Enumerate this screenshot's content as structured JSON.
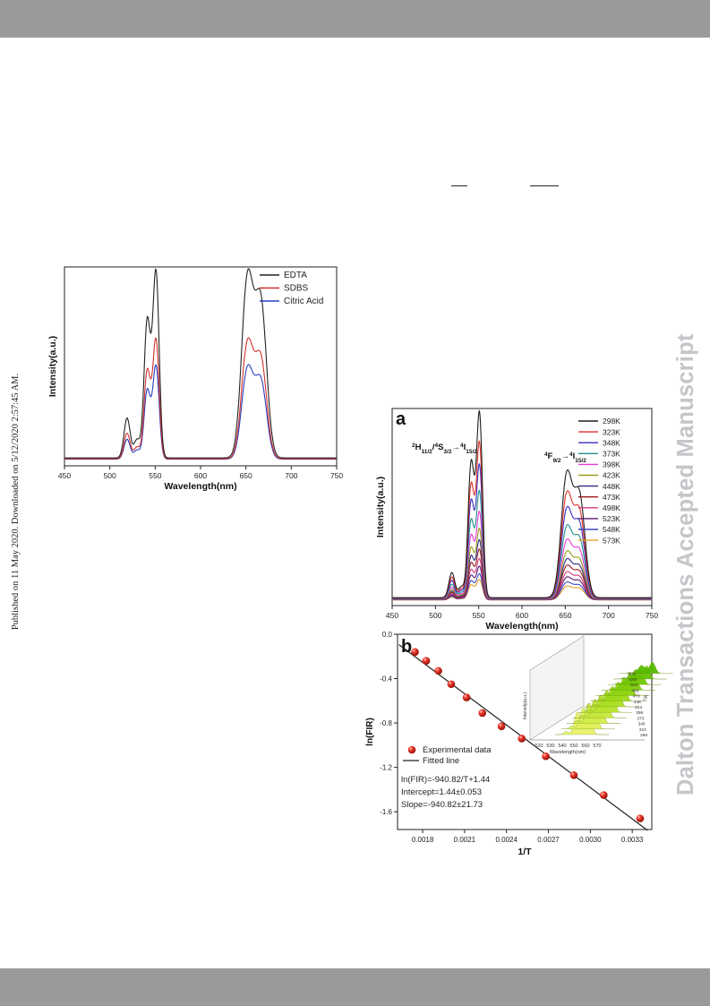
{
  "page": {
    "side_note": "Published on 11 May 2020. Downloaded on 5/12/2020 2:57:45 AM.",
    "watermark": "Dalton Transactions Accepted Manuscript"
  },
  "chart_data": [
    {
      "id": "surfactant",
      "type": "line",
      "xlabel": "Wavelength(nm)",
      "ylabel": "Intensity(a.u.)",
      "xlim": [
        450,
        750
      ],
      "xticks": [
        "450",
        "500",
        "550",
        "600",
        "650",
        "700",
        "750"
      ],
      "legend": "top-right",
      "series": [
        {
          "name": "EDTA",
          "color": "#222222",
          "scale": 1.0
        },
        {
          "name": "SDBS",
          "color": "#d2312c",
          "scale": 0.64
        },
        {
          "name": "Citric Acid",
          "color": "#2b3fbf",
          "scale": 0.5
        }
      ],
      "peaks": [
        [
          519,
          0.22
        ],
        [
          530,
          0.1
        ],
        [
          541,
          0.73
        ],
        [
          551,
          1.0
        ],
        [
          651,
          0.84
        ],
        [
          667,
          0.76
        ]
      ]
    },
    {
      "id": "a",
      "type": "line",
      "panel_label": "a",
      "xlabel": "Wavelength(nm)",
      "ylabel": "Intensity(a.u.)",
      "xlim": [
        450,
        750
      ],
      "xticks": [
        "450",
        "500",
        "550",
        "600",
        "650",
        "700",
        "750"
      ],
      "legend": "top-right",
      "annotations": {
        "green": [
          "2",
          "H",
          "11/2",
          "/",
          "4",
          "S",
          "3/2",
          "→",
          "4",
          "I",
          "15/2"
        ],
        "red": [
          "4",
          "F",
          "9/2",
          "→",
          "4",
          "I",
          "15/2"
        ]
      },
      "series": [
        {
          "name": "298K",
          "color": "#1f1f1f",
          "scale": 1.0
        },
        {
          "name": "323K",
          "color": "#e0302a",
          "scale": 0.84
        },
        {
          "name": "348K",
          "color": "#3a2fc0",
          "scale": 0.72
        },
        {
          "name": "373K",
          "color": "#1f8f8f",
          "scale": 0.58
        },
        {
          "name": "398K",
          "color": "#e83ad8",
          "scale": 0.47
        },
        {
          "name": "423K",
          "color": "#9a9a1a",
          "scale": 0.38
        },
        {
          "name": "448K",
          "color": "#2a2a80",
          "scale": 0.32
        },
        {
          "name": "473K",
          "color": "#9a1a1a",
          "scale": 0.27
        },
        {
          "name": "498K",
          "color": "#d43a7e",
          "scale": 0.22
        },
        {
          "name": "523K",
          "color": "#5a1a70",
          "scale": 0.18
        },
        {
          "name": "548K",
          "color": "#3a4abf",
          "scale": 0.14
        },
        {
          "name": "573K",
          "color": "#e8a02a",
          "scale": 0.11
        }
      ],
      "peaks": [
        [
          519,
          0.14
        ],
        [
          530,
          0.06
        ],
        [
          541,
          0.72
        ],
        [
          551,
          1.0
        ],
        [
          651,
          0.58
        ],
        [
          667,
          0.5
        ]
      ]
    },
    {
      "id": "b",
      "type": "scatter",
      "panel_label": "b",
      "xlabel": "1/T",
      "ylabel": "ln(FIR)",
      "xlim": [
        0.00162,
        0.00344
      ],
      "ylim": [
        -1.76,
        0.0
      ],
      "xticks": [
        0.0018,
        0.0021,
        0.0024,
        0.0027,
        0.003,
        0.0033
      ],
      "xtick_labels": [
        "0.0018",
        "0.0021",
        "0.0024",
        "0.0027",
        "0.0030",
        "0.0033"
      ],
      "yticks": [
        0.0,
        -0.4,
        -0.8,
        -1.2,
        -1.6
      ],
      "ytick_labels": [
        "0.0",
        "-0.4",
        "-0.8",
        "-1.2",
        "-1.6"
      ],
      "series": [
        {
          "name": "Experimental data",
          "x": [
            0.001745,
            0.001825,
            0.001912,
            0.002004,
            0.002114,
            0.002227,
            0.002364,
            0.002509,
            0.002681,
            0.002882,
            0.003096,
            0.003356
          ],
          "y": [
            -0.16,
            -0.24,
            -0.33,
            -0.45,
            -0.57,
            -0.71,
            -0.83,
            -0.94,
            -1.1,
            -1.27,
            -1.45,
            -1.66
          ],
          "color": "#e02a20"
        },
        {
          "name": "Fitted line",
          "type": "line",
          "x": [
            0.00163,
            0.00341
          ],
          "y": [
            -0.094,
            -1.768
          ],
          "color": "#222222"
        }
      ],
      "legend": "lower-left",
      "fit_text": [
        "ln(FIR)=-940.82/T+1.44",
        "Intercept=1.44±0.053",
        "Slope=-940.82±21.73"
      ],
      "inset": {
        "xlabel": "Wavelength(nm)",
        "ylabel": "Intensity(a.u.)",
        "xticks": [
          "520",
          "530",
          "540",
          "550",
          "560",
          "570"
        ],
        "zlabel": "T/K",
        "zticks": [
          "298",
          "323",
          "348",
          "373",
          "398",
          "423",
          "448",
          "473",
          "498",
          "523",
          "548",
          "573"
        ]
      }
    }
  ]
}
